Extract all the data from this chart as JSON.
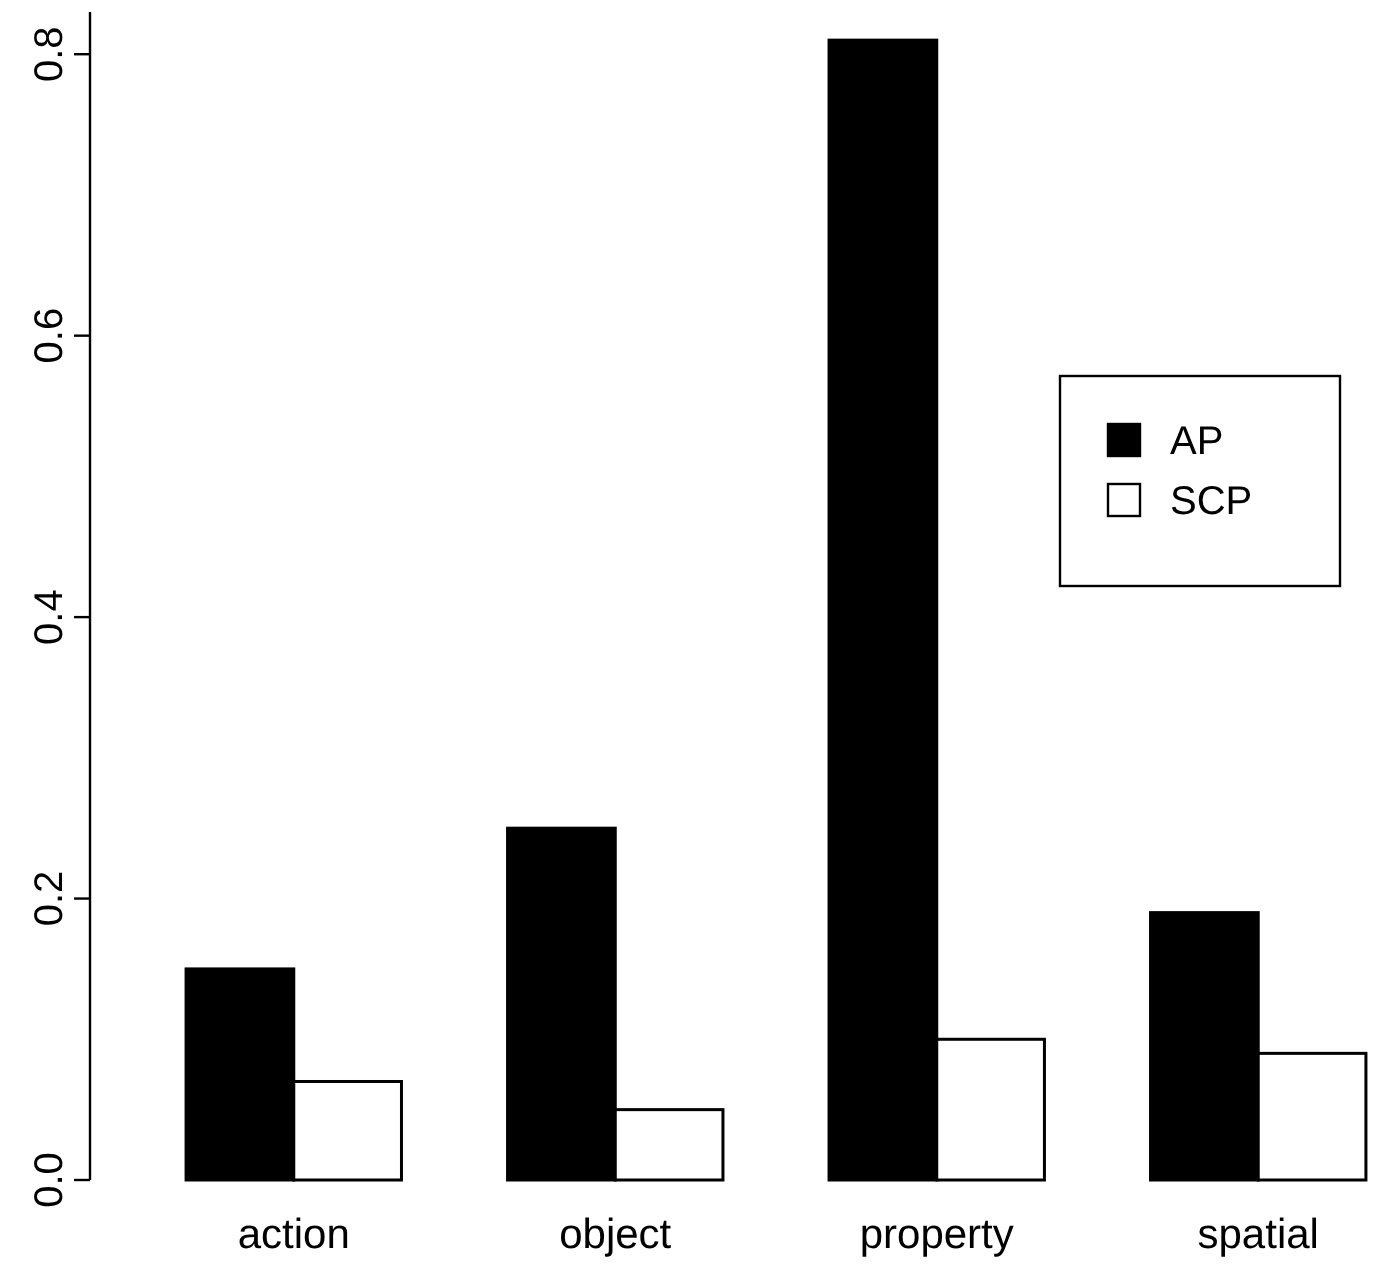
{
  "chart_data": {
    "type": "bar",
    "categories": [
      "action",
      "object",
      "property",
      "spatial"
    ],
    "series": [
      {
        "name": "AP",
        "color": "#000000",
        "values": [
          0.15,
          0.25,
          0.81,
          0.19
        ]
      },
      {
        "name": "SCP",
        "color": "#ffffff",
        "values": [
          0.07,
          0.05,
          0.1,
          0.09
        ]
      }
    ],
    "ylim": [
      0,
      0.83
    ],
    "yticks": [
      {
        "value": 0,
        "label": "0.0"
      },
      0.2,
      0.4,
      0.6,
      0.8
    ],
    "legend": "right",
    "grid": false
  }
}
